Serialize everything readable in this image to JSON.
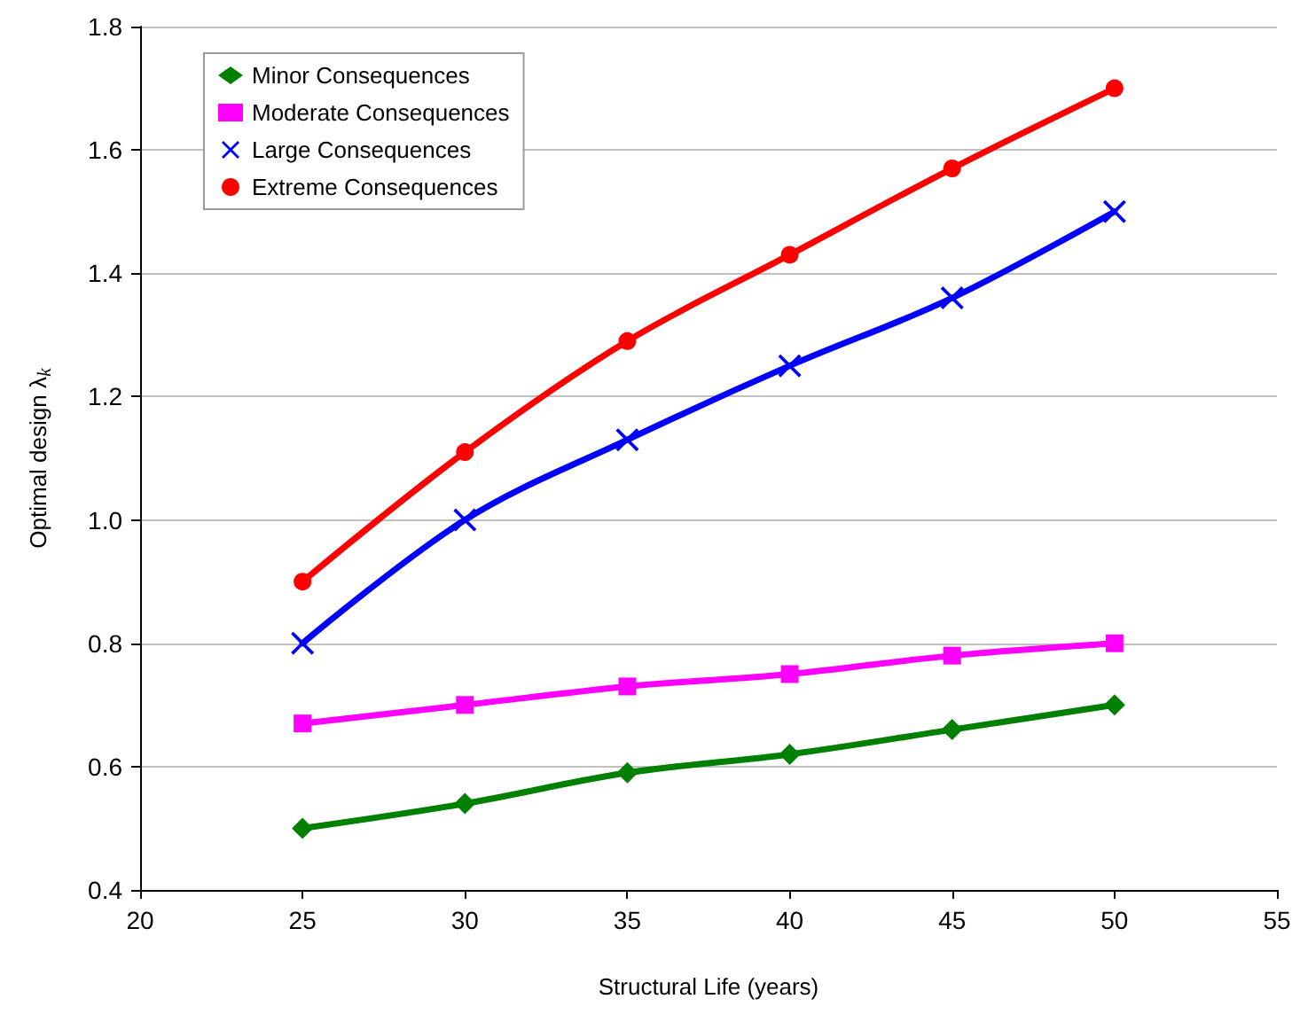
{
  "chart_data": {
    "type": "line",
    "xlabel": "Structural Life (years)",
    "ylabel": "Optimal design λ$_{k}$",
    "xlim": [
      20,
      55
    ],
    "xticks": [
      20,
      25,
      30,
      35,
      40,
      45,
      50,
      55
    ],
    "ylim": [
      0.4,
      1.8
    ],
    "yticks": [
      {
        "value": 0.4,
        "label": "0.4"
      },
      {
        "value": 0.6,
        "label": "0.6"
      },
      {
        "value": 0.8,
        "label": "0.8"
      },
      {
        "value": 1.0,
        "label": "1.0"
      },
      {
        "value": 1.2,
        "label": "1.2"
      },
      {
        "value": 1.4,
        "label": "1.4"
      },
      {
        "value": 1.6,
        "label": "1.6"
      },
      {
        "value": 1.8,
        "label": "1.8"
      }
    ],
    "grid": "y",
    "legend": "top left",
    "line_style": "solid",
    "x": [
      25,
      30,
      35,
      40,
      45,
      50
    ],
    "series": [
      {
        "name": "Minor Consequences",
        "color": "#008000",
        "marker": "diamond",
        "values": [
          0.5,
          0.54,
          0.59,
          0.62,
          0.66,
          0.7
        ]
      },
      {
        "name": "Moderate Consequences",
        "color": "#ff00ff",
        "marker": "square",
        "values": [
          0.67,
          0.7,
          0.73,
          0.75,
          0.78,
          0.8
        ]
      },
      {
        "name": "Large Consequences",
        "color": "#0000ff",
        "marker": "cross",
        "values": [
          0.8,
          1.0,
          1.13,
          1.25,
          1.36,
          1.5
        ]
      },
      {
        "name": "Extreme Consequences",
        "color": "#ff0000",
        "marker": "circle",
        "values": [
          0.9,
          1.11,
          1.29,
          1.43,
          1.57,
          1.7
        ]
      }
    ]
  }
}
